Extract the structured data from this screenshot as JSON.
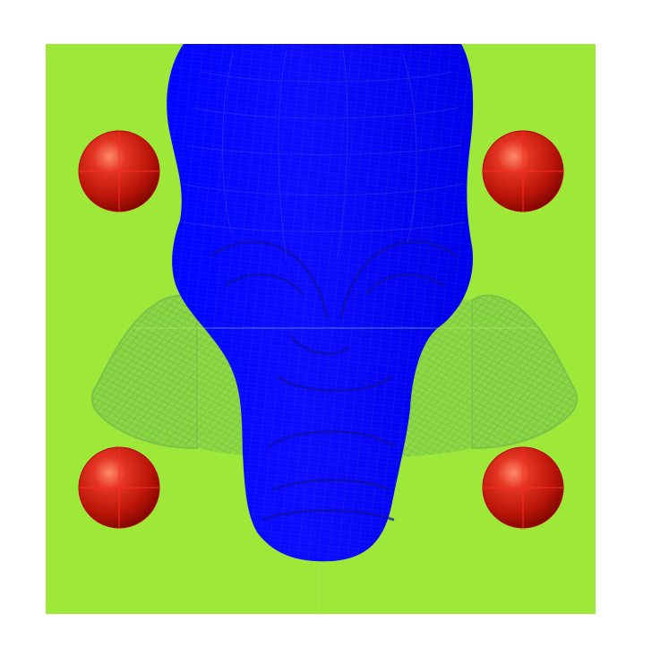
{
  "scene": {
    "background_color": "#ffffff",
    "plane_color": "#9ee83a",
    "plane_edge_color": "#8ad82f",
    "mesh_color": "#0000ff",
    "mesh_line_color": "#1a1ab8",
    "ghost_mesh_color": "#7cc444",
    "sphere_color": "#d81e10",
    "sphere_count": 4,
    "objects": [
      "green-ground-plane",
      "blue-wireframe-head-mesh",
      "green-translucent-offset-mesh",
      "red-marker-spheres"
    ]
  }
}
